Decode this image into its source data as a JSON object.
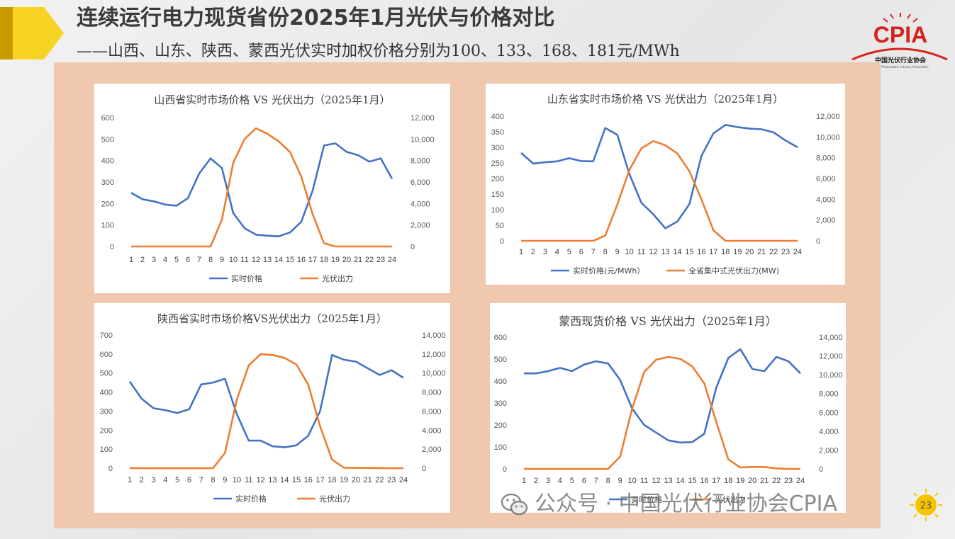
{
  "slide": {
    "title": "连续运行电力现货省份2025年1月光伏与价格对比",
    "subtitle": "——山西、山东、陕西、蒙西光伏实时加权价格分别为100、133、168、181元/MWh",
    "logo_text": "CPIA",
    "logo_caption": "中国光伏行业协会",
    "logo_caption_en": "China Photovoltaic Industry Association",
    "watermark": "公众号 · 中国光伏行业协会CPIA",
    "page_number": "23"
  },
  "colors": {
    "price": "#4472c4",
    "pv": "#ed7d31",
    "panel": "#efc8ad",
    "accent": "#f5c400"
  },
  "chart_data": [
    {
      "type": "line",
      "title": "山西省实时市场价格 VS 光伏出力（2025年1月）",
      "categories": [
        "1",
        "2",
        "3",
        "4",
        "5",
        "6",
        "7",
        "8",
        "9",
        "10",
        "11",
        "12",
        "13",
        "14",
        "15",
        "16",
        "17",
        "18",
        "19",
        "20",
        "21",
        "22",
        "23",
        "24"
      ],
      "y_left": {
        "ticks": [
          "0",
          "100",
          "200",
          "300",
          "400",
          "500",
          "600"
        ],
        "lim": [
          0,
          600
        ]
      },
      "y_right": {
        "ticks": [
          "0",
          "2,000",
          "4,000",
          "6,000",
          "8,000",
          "10,000",
          "12,000"
        ],
        "lim": [
          0,
          12000
        ]
      },
      "series": [
        {
          "name": "实时价格",
          "axis": "left",
          "values": [
            250,
            220,
            210,
            195,
            190,
            225,
            340,
            410,
            365,
            155,
            85,
            55,
            50,
            47,
            65,
            115,
            260,
            470,
            480,
            440,
            425,
            395,
            410,
            315
          ]
        },
        {
          "name": "光伏出力",
          "axis": "right",
          "values": [
            0,
            0,
            0,
            0,
            0,
            0,
            0,
            0,
            2500,
            7800,
            10000,
            11000,
            10500,
            9800,
            8800,
            6500,
            3000,
            300,
            0,
            0,
            0,
            0,
            0,
            0
          ]
        }
      ]
    },
    {
      "type": "line",
      "title": "山东省实时市场价格 VS 光伏出力（2025年1月）",
      "categories": [
        "1",
        "2",
        "3",
        "4",
        "5",
        "6",
        "7",
        "8",
        "9",
        "10",
        "11",
        "12",
        "13",
        "14",
        "15",
        "16",
        "17",
        "18",
        "19",
        "20",
        "21",
        "22",
        "23",
        "24"
      ],
      "y_left": {
        "ticks": [
          "0",
          "50",
          "100",
          "150",
          "200",
          "250",
          "300",
          "350",
          "400"
        ],
        "lim": [
          0,
          400
        ]
      },
      "y_right": {
        "ticks": [
          "0",
          "2,000",
          "4,000",
          "6,000",
          "8,000",
          "10,000",
          "12,000"
        ],
        "lim": [
          0,
          12000
        ]
      },
      "series": [
        {
          "name": "实时价格(元/MWh）",
          "axis": "left",
          "values": [
            282,
            248,
            252,
            255,
            265,
            256,
            255,
            362,
            340,
            215,
            122,
            85,
            40,
            62,
            118,
            272,
            345,
            372,
            365,
            360,
            358,
            348,
            322,
            300
          ]
        },
        {
          "name": "全省集中式光伏出力(MW)",
          "axis": "right",
          "values": [
            0,
            0,
            0,
            0,
            0,
            0,
            0,
            500,
            3500,
            6800,
            8900,
            9600,
            9200,
            8400,
            6700,
            4000,
            1000,
            0,
            0,
            0,
            0,
            0,
            0,
            0
          ]
        }
      ]
    },
    {
      "type": "line",
      "title": "陕西省实时市场价格VS光伏出力（2025年1月）",
      "categories": [
        "1",
        "2",
        "3",
        "4",
        "5",
        "6",
        "7",
        "8",
        "9",
        "10",
        "11",
        "12",
        "13",
        "14",
        "15",
        "16",
        "17",
        "18",
        "19",
        "20",
        "21",
        "22",
        "23",
        "24"
      ],
      "y_left": {
        "ticks": [
          "0",
          "100",
          "200",
          "300",
          "400",
          "500",
          "600",
          "700"
        ],
        "lim": [
          0,
          700
        ]
      },
      "y_right": {
        "ticks": [
          "0",
          "2,000",
          "4,000",
          "6,000",
          "8,000",
          "10,000",
          "12,000",
          "14,000"
        ],
        "lim": [
          0,
          14000
        ]
      },
      "series": [
        {
          "name": "实时价格",
          "axis": "left",
          "values": [
            455,
            365,
            315,
            305,
            290,
            310,
            440,
            450,
            470,
            285,
            145,
            145,
            115,
            110,
            120,
            170,
            300,
            595,
            570,
            560,
            525,
            490,
            515,
            475
          ]
        },
        {
          "name": "光伏出力",
          "axis": "right",
          "values": [
            0,
            0,
            0,
            0,
            0,
            0,
            0,
            0,
            1600,
            7200,
            10800,
            12000,
            11900,
            11600,
            10900,
            8800,
            4400,
            900,
            50,
            30,
            20,
            10,
            0,
            0
          ]
        }
      ]
    },
    {
      "type": "line",
      "title": "蒙西现货价格 VS 光伏出力（2025年1月）",
      "categories": [
        "1",
        "2",
        "3",
        "4",
        "5",
        "6",
        "7",
        "8",
        "9",
        "10",
        "11",
        "12",
        "13",
        "14",
        "15",
        "16",
        "17",
        "18",
        "19",
        "20",
        "21",
        "22",
        "23",
        "24"
      ],
      "y_left": {
        "ticks": [
          "0",
          "100",
          "200",
          "300",
          "400",
          "500",
          "600"
        ],
        "lim": [
          0,
          600
        ]
      },
      "y_right": {
        "ticks": [
          "0",
          "2,000",
          "4,000",
          "6,000",
          "8,000",
          "10,000",
          "12,000",
          "14,000"
        ],
        "lim": [
          0,
          14000
        ]
      },
      "series": [
        {
          "name": "实时价格",
          "axis": "left",
          "values": [
            435,
            435,
            445,
            460,
            445,
            475,
            490,
            480,
            405,
            275,
            200,
            165,
            130,
            120,
            122,
            160,
            370,
            505,
            545,
            455,
            445,
            510,
            490,
            435
          ]
        },
        {
          "name": "光伏出力",
          "axis": "right",
          "values": [
            0,
            0,
            0,
            0,
            0,
            0,
            0,
            0,
            1300,
            6400,
            10300,
            11600,
            11900,
            11700,
            10900,
            9100,
            5000,
            1000,
            150,
            200,
            200,
            50,
            0,
            0
          ]
        }
      ]
    }
  ]
}
